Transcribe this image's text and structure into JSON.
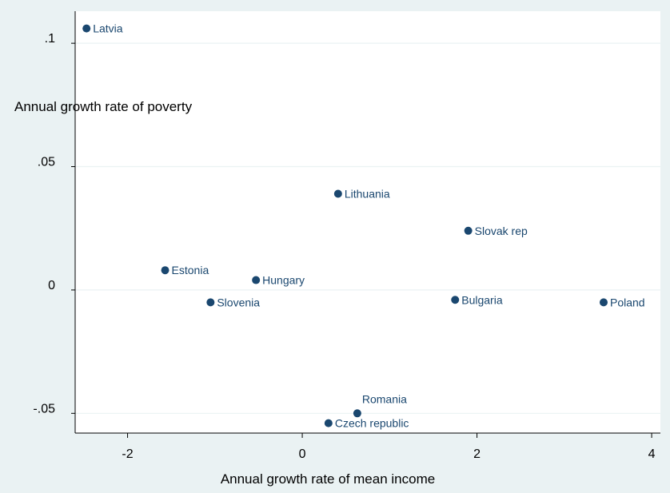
{
  "chart_data": {
    "type": "scatter",
    "xlabel": "Annual growth rate of mean income",
    "ylabel": "Annual growth rate of poverty",
    "xlim": [
      -2.6,
      4.1
    ],
    "ylim": [
      -0.058,
      0.113
    ],
    "x_ticks": [
      {
        "value": -2,
        "label": "-2"
      },
      {
        "value": 0,
        "label": "0"
      },
      {
        "value": 2,
        "label": "2"
      },
      {
        "value": 4,
        "label": "4"
      }
    ],
    "y_ticks": [
      {
        "value": 0.1,
        "label": ".1"
      },
      {
        "value": 0.05,
        "label": ".05"
      },
      {
        "value": 0,
        "label": "0"
      },
      {
        "value": -0.05,
        "label": "-.05"
      }
    ],
    "grid": {
      "y": true,
      "x": false
    },
    "colors": {
      "outer_background": "#eaf2f3",
      "plot_background": "#ffffff",
      "gridline": "#eaf2f3",
      "marker": "#1a476f",
      "label": "#1a476f",
      "axis": "#000000"
    },
    "points": [
      {
        "label": "Latvia",
        "x": -2.47,
        "y": 0.106
      },
      {
        "label": "Lithuania",
        "x": 0.41,
        "y": 0.039
      },
      {
        "label": "Slovak rep",
        "x": 1.9,
        "y": 0.024
      },
      {
        "label": "Estonia",
        "x": -1.57,
        "y": 0.008
      },
      {
        "label": "Hungary",
        "x": -0.53,
        "y": 0.004
      },
      {
        "label": "Slovenia",
        "x": -1.05,
        "y": -0.005
      },
      {
        "label": "Bulgaria",
        "x": 1.75,
        "y": -0.004
      },
      {
        "label": "Poland",
        "x": 3.45,
        "y": -0.005
      },
      {
        "label": "Romania",
        "x": 0.63,
        "y": -0.05,
        "label_position": "above"
      },
      {
        "label": "Czech republic",
        "x": 0.3,
        "y": -0.054
      }
    ]
  }
}
